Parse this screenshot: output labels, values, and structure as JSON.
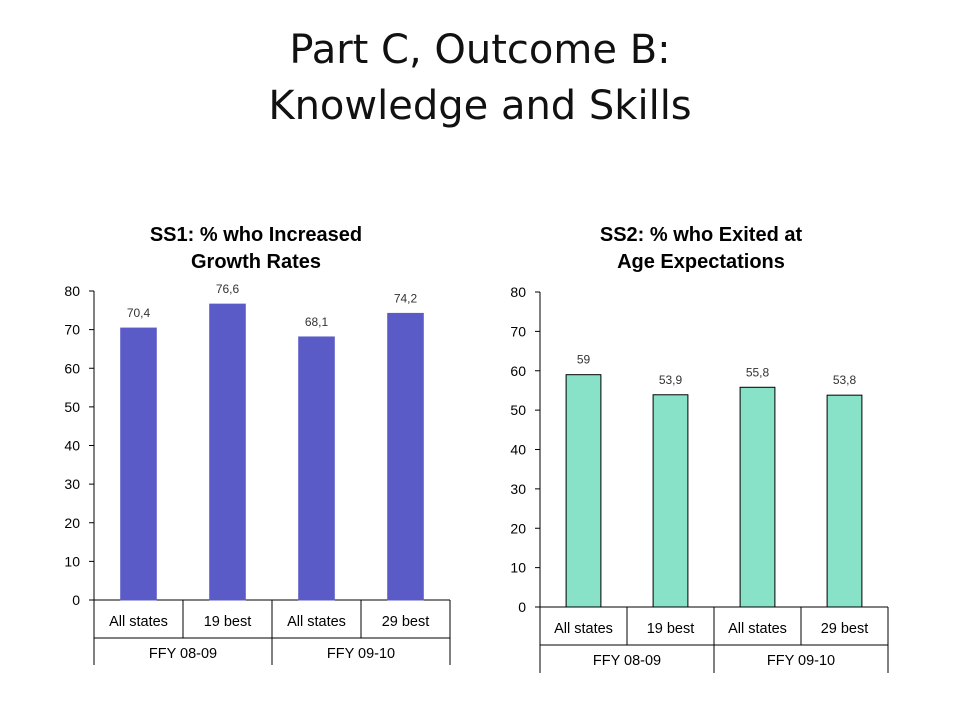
{
  "slide": {
    "title_line1": "Part C, Outcome B:",
    "title_line2": "Knowledge and Skills"
  },
  "chart_data": [
    {
      "type": "bar",
      "title_lines": [
        "SS1: % who Increased",
        "Growth Rates"
      ],
      "categories": [
        "All states",
        "19 best",
        "All states",
        "29 best"
      ],
      "groups": [
        {
          "label": "FFY 08-09",
          "span": 2
        },
        {
          "label": "FFY 09-10",
          "span": 2
        }
      ],
      "values": [
        70.4,
        76.6,
        68.1,
        74.2
      ],
      "data_labels": [
        "70,4",
        "76,6",
        "68,1",
        "74,2"
      ],
      "ylim": [
        0,
        80
      ],
      "yticks": [
        0,
        10,
        20,
        30,
        40,
        50,
        60,
        70,
        80
      ],
      "bar_color": "#5b5bc8",
      "bar_stroke": "#5b5bc8",
      "grid": false,
      "legend": "none"
    },
    {
      "type": "bar",
      "title_lines": [
        "SS2: % who Exited at",
        "Age Expectations"
      ],
      "categories": [
        "All states",
        "19 best",
        "All states",
        "29 best"
      ],
      "groups": [
        {
          "label": "FFY 08-09",
          "span": 2
        },
        {
          "label": "FFY 09-10",
          "span": 2
        }
      ],
      "values": [
        59,
        53.9,
        55.8,
        53.8
      ],
      "data_labels": [
        "59",
        "53,9",
        "55,8",
        "53,8"
      ],
      "ylim": [
        0,
        80
      ],
      "yticks": [
        0,
        10,
        20,
        30,
        40,
        50,
        60,
        70,
        80
      ],
      "bar_color": "#88e2c8",
      "bar_stroke": "#000000",
      "grid": false,
      "legend": "none"
    }
  ]
}
